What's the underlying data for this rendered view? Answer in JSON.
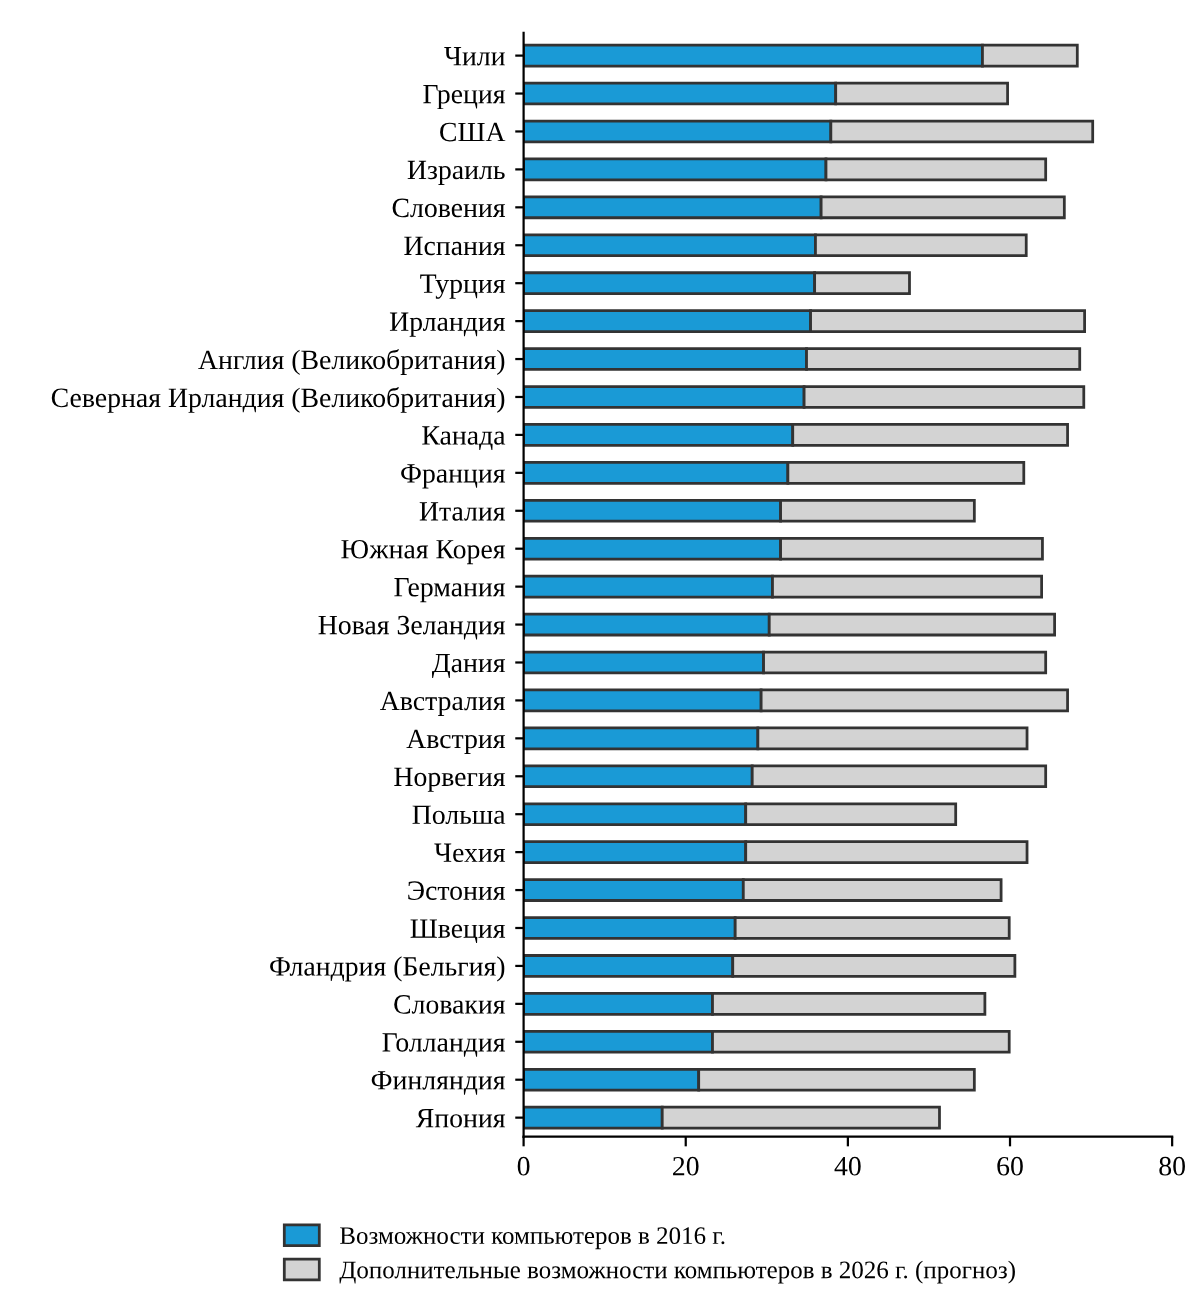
{
  "chart_data": {
    "type": "bar",
    "orientation": "horizontal",
    "stacked": true,
    "categories": [
      "Чили",
      "Греция",
      "США",
      "Израиль",
      "Словения",
      "Испания",
      "Турция",
      "Ирландия",
      "Англия (Великобритания)",
      "Северная Ирландия (Великобритания)",
      "Канада",
      "Франция",
      "Италия",
      "Южная Корея",
      "Германия",
      "Новая Зеландия",
      "Дания",
      "Австралия",
      "Австрия",
      "Норвегия",
      "Польша",
      "Чехия",
      "Эстония",
      "Швеция",
      "Фландрия (Бельгия)",
      "Словакия",
      "Голландия",
      "Финляндия",
      "Япония"
    ],
    "series": [
      {
        "name": "Возможности компьютеров в 2016 г.",
        "color": "#1a9ad6",
        "values": [
          56.6,
          38.5,
          37.9,
          37.3,
          36.7,
          36.0,
          35.9,
          35.4,
          34.9,
          34.6,
          33.2,
          32.6,
          31.7,
          31.7,
          30.7,
          30.3,
          29.6,
          29.3,
          28.9,
          28.2,
          27.4,
          27.4,
          27.1,
          26.1,
          25.8,
          23.3,
          23.3,
          21.6,
          17.1
        ]
      },
      {
        "name": "Дополнительные возможности компьютеров в 2026 г. (прогноз)",
        "color": "#d3d3d3",
        "values": [
          11.7,
          21.2,
          32.3,
          27.1,
          30.0,
          26.0,
          11.7,
          33.8,
          33.7,
          34.5,
          33.9,
          29.1,
          23.9,
          32.3,
          33.2,
          35.2,
          34.8,
          37.8,
          33.2,
          36.2,
          25.9,
          34.7,
          31.8,
          33.8,
          34.8,
          33.6,
          36.6,
          34.0,
          34.2
        ]
      }
    ],
    "xlim": [
      0,
      80
    ],
    "xticks": [
      0,
      20,
      40,
      60,
      80
    ],
    "grid": false,
    "legend": "bottom"
  }
}
